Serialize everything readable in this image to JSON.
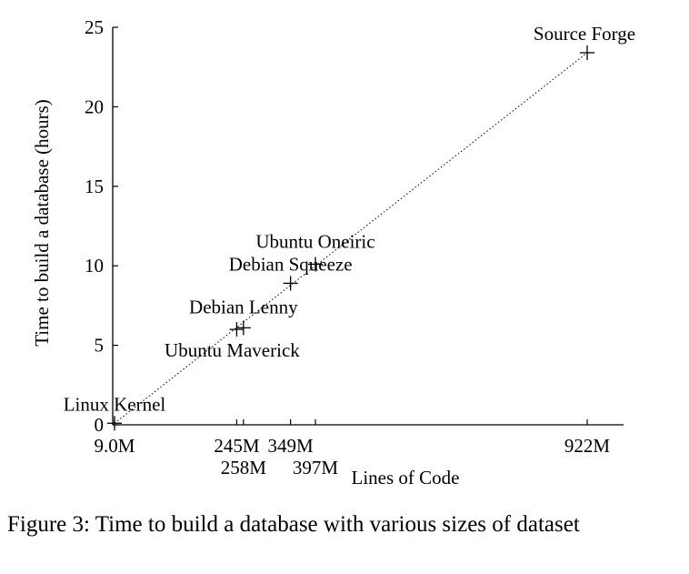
{
  "chart_data": {
    "type": "scatter",
    "xlabel": "Lines of Code",
    "ylabel": "Time to build a database (hours)",
    "ylim": [
      0,
      25
    ],
    "yticks": [
      0,
      5,
      10,
      15,
      20,
      25
    ],
    "xticks": [
      {
        "value": 9.0,
        "label": "9.0M"
      },
      {
        "value": 245,
        "label": "245M"
      },
      {
        "value": 258,
        "label": "258M"
      },
      {
        "value": 349,
        "label": "349M"
      },
      {
        "value": 397,
        "label": "397M"
      },
      {
        "value": 922,
        "label": "922M"
      }
    ],
    "points": [
      {
        "label": "Linux Kernel",
        "x": 9.0,
        "y": 0.1
      },
      {
        "label": "Ubuntu Maverick",
        "x": 245,
        "y": 6.0
      },
      {
        "label": "Debian Lenny",
        "x": 258,
        "y": 6.1
      },
      {
        "label": "Debian Squeeze",
        "x": 349,
        "y": 8.9
      },
      {
        "label": "Ubuntu Oneiric",
        "x": 397,
        "y": 10.1
      },
      {
        "label": "Source Forge",
        "x": 922,
        "y": 23.4
      }
    ],
    "trend_line": {
      "style": "dotted",
      "from": [
        9.0,
        0.1
      ],
      "to": [
        922,
        23.4
      ]
    },
    "grid": false,
    "legend": "none"
  },
  "caption": "Figure 3: Time to build a database with various sizes of dataset"
}
